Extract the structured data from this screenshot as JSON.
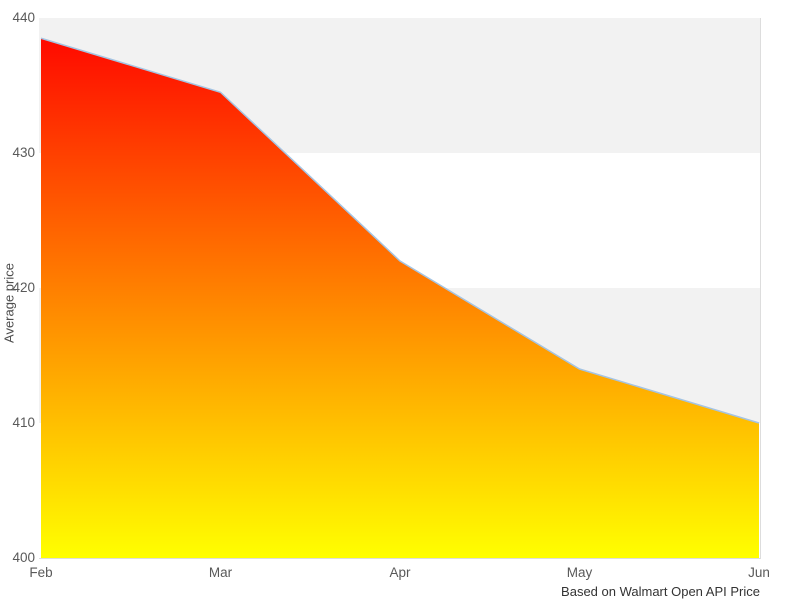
{
  "chart_data": {
    "type": "area",
    "title": "",
    "categories": [
      "Feb",
      "Mar",
      "Apr",
      "May",
      "Jun"
    ],
    "values": [
      438.5,
      434.5,
      422,
      414,
      410
    ],
    "series": [
      {
        "name": "Average price",
        "values": [
          438.5,
          434.5,
          422,
          414,
          410
        ]
      }
    ],
    "xlabel": "",
    "ylabel": "Average price",
    "ylim": [
      400,
      440
    ],
    "yticks": [
      440,
      430,
      420,
      410,
      400
    ],
    "caption": "Based on Walmart Open API Price",
    "legend_position": "none",
    "grid": "alternating-horizontal-bands",
    "band_ranges": [
      [
        430,
        440
      ],
      [
        410,
        420
      ]
    ],
    "colors": {
      "gradient_top": "#ff0000",
      "gradient_bottom": "#ffff00",
      "line": "#a5c4e2",
      "band": "#f2f2f2",
      "plot_border": "#dddddd",
      "tick_text": "#595959",
      "axis_title_text": "#4d4d4d",
      "caption_text": "#333333",
      "background": "#ffffff"
    }
  }
}
